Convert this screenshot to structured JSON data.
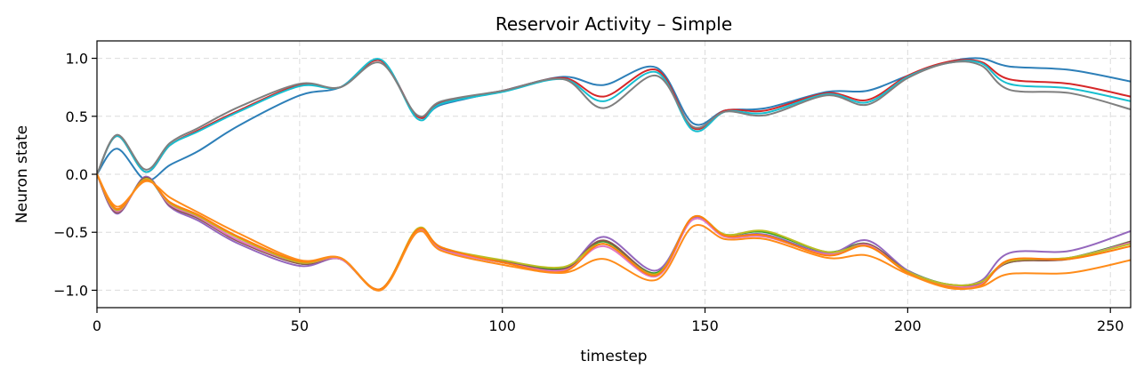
{
  "chart_data": {
    "type": "line",
    "title": "Reservoir Activity – Simple",
    "xlabel": "timestep",
    "ylabel": "Neuron state",
    "xlim": [
      0,
      255
    ],
    "ylim": [
      -1.15,
      1.15
    ],
    "xticks": [
      0,
      50,
      100,
      150,
      200,
      250
    ],
    "yticks": [
      1.0,
      0.5,
      0.0,
      -0.5,
      -1.0
    ],
    "ytick_labels": [
      "1.0",
      "0.5",
      "0.0",
      "−0.5",
      "−1.0"
    ],
    "grid": true,
    "legend": "none",
    "series": [
      {
        "color": "#2d7fb8",
        "x": [
          0,
          5,
          12,
          18,
          25,
          35,
          50,
          60,
          70,
          79,
          85,
          100,
          115,
          125,
          138,
          147,
          155,
          165,
          180,
          190,
          200,
          210,
          218,
          225,
          240,
          255
        ],
        "y": [
          0,
          0.22,
          -0.05,
          0.08,
          0.2,
          0.42,
          0.68,
          0.75,
          0.98,
          0.5,
          0.6,
          0.72,
          0.84,
          0.77,
          0.92,
          0.44,
          0.55,
          0.57,
          0.71,
          0.72,
          0.85,
          0.97,
          1.0,
          0.93,
          0.9,
          0.8
        ]
      },
      {
        "color": "#d62728",
        "x": [
          0,
          5,
          12,
          18,
          25,
          35,
          50,
          60,
          70,
          79,
          85,
          100,
          115,
          125,
          138,
          147,
          155,
          165,
          180,
          190,
          200,
          210,
          218,
          225,
          240,
          255
        ],
        "y": [
          0,
          0.33,
          0.02,
          0.25,
          0.38,
          0.55,
          0.77,
          0.75,
          0.98,
          0.5,
          0.62,
          0.72,
          0.83,
          0.67,
          0.9,
          0.4,
          0.55,
          0.55,
          0.7,
          0.64,
          0.85,
          0.97,
          0.97,
          0.82,
          0.78,
          0.67
        ]
      },
      {
        "color": "#17becf",
        "x": [
          0,
          5,
          12,
          18,
          25,
          35,
          50,
          60,
          70,
          79,
          85,
          100,
          115,
          125,
          138,
          147,
          155,
          165,
          180,
          190,
          200,
          210,
          218,
          225,
          240,
          255
        ],
        "y": [
          0,
          0.33,
          0.02,
          0.25,
          0.37,
          0.54,
          0.76,
          0.75,
          0.99,
          0.48,
          0.61,
          0.71,
          0.82,
          0.63,
          0.88,
          0.38,
          0.54,
          0.53,
          0.69,
          0.62,
          0.84,
          0.96,
          0.96,
          0.78,
          0.74,
          0.63
        ]
      },
      {
        "color": "#7f7f7f",
        "x": [
          0,
          5,
          12,
          18,
          25,
          35,
          50,
          60,
          70,
          79,
          85,
          100,
          115,
          125,
          138,
          147,
          155,
          165,
          180,
          190,
          200,
          210,
          218,
          225,
          240,
          255
        ],
        "y": [
          0,
          0.34,
          0.04,
          0.27,
          0.4,
          0.58,
          0.78,
          0.75,
          0.96,
          0.51,
          0.63,
          0.72,
          0.82,
          0.57,
          0.85,
          0.41,
          0.54,
          0.51,
          0.68,
          0.6,
          0.83,
          0.96,
          0.94,
          0.73,
          0.7,
          0.56
        ]
      },
      {
        "color": "#2ca02c",
        "x": [
          0,
          5,
          12,
          18,
          25,
          35,
          50,
          60,
          70,
          79,
          85,
          100,
          115,
          125,
          138,
          147,
          155,
          165,
          180,
          190,
          200,
          210,
          218,
          225,
          240,
          255
        ],
        "y": [
          0,
          -0.32,
          -0.04,
          -0.27,
          -0.38,
          -0.57,
          -0.77,
          -0.73,
          -0.99,
          -0.48,
          -0.64,
          -0.75,
          -0.81,
          -0.58,
          -0.85,
          -0.38,
          -0.52,
          -0.5,
          -0.67,
          -0.6,
          -0.83,
          -0.95,
          -0.93,
          -0.76,
          -0.72,
          -0.58
        ]
      },
      {
        "color": "#9467bd",
        "x": [
          0,
          5,
          12,
          18,
          25,
          35,
          50,
          60,
          70,
          79,
          85,
          100,
          115,
          125,
          138,
          147,
          155,
          165,
          180,
          190,
          200,
          210,
          218,
          225,
          240,
          255
        ],
        "y": [
          0,
          -0.34,
          -0.02,
          -0.28,
          -0.4,
          -0.6,
          -0.79,
          -0.73,
          -0.99,
          -0.5,
          -0.65,
          -0.76,
          -0.82,
          -0.54,
          -0.83,
          -0.38,
          -0.53,
          -0.52,
          -0.68,
          -0.57,
          -0.83,
          -0.95,
          -0.92,
          -0.68,
          -0.66,
          -0.49
        ]
      },
      {
        "color": "#8c564b",
        "x": [
          0,
          5,
          12,
          18,
          25,
          35,
          50,
          60,
          70,
          79,
          85,
          100,
          115,
          125,
          138,
          147,
          155,
          165,
          180,
          190,
          200,
          210,
          218,
          225,
          240,
          255
        ],
        "y": [
          0,
          -0.33,
          -0.03,
          -0.27,
          -0.38,
          -0.58,
          -0.77,
          -0.73,
          -0.99,
          -0.48,
          -0.64,
          -0.75,
          -0.82,
          -0.57,
          -0.86,
          -0.39,
          -0.53,
          -0.53,
          -0.69,
          -0.6,
          -0.84,
          -0.96,
          -0.94,
          -0.76,
          -0.73,
          -0.58
        ]
      },
      {
        "color": "#e377c2",
        "x": [
          0,
          5,
          12,
          18,
          25,
          35,
          50,
          60,
          70,
          79,
          85,
          100,
          115,
          125,
          138,
          147,
          155,
          165,
          180,
          190,
          200,
          210,
          218,
          225,
          240,
          255
        ],
        "y": [
          0,
          -0.32,
          -0.04,
          -0.26,
          -0.37,
          -0.57,
          -0.76,
          -0.73,
          -0.99,
          -0.49,
          -0.65,
          -0.76,
          -0.83,
          -0.62,
          -0.88,
          -0.39,
          -0.54,
          -0.54,
          -0.69,
          -0.61,
          -0.85,
          -0.96,
          -0.95,
          -0.75,
          -0.72,
          -0.59
        ]
      },
      {
        "color": "#bcbd22",
        "x": [
          0,
          5,
          12,
          18,
          25,
          35,
          50,
          60,
          70,
          79,
          85,
          100,
          115,
          125,
          138,
          147,
          155,
          165,
          180,
          190,
          200,
          210,
          218,
          225,
          240,
          255
        ],
        "y": [
          0,
          -0.31,
          -0.04,
          -0.25,
          -0.36,
          -0.55,
          -0.76,
          -0.72,
          -0.99,
          -0.47,
          -0.63,
          -0.74,
          -0.8,
          -0.6,
          -0.86,
          -0.37,
          -0.52,
          -0.49,
          -0.67,
          -0.62,
          -0.84,
          -0.95,
          -0.93,
          -0.75,
          -0.72,
          -0.6
        ]
      },
      {
        "color": "#ff7f0e",
        "x": [
          0,
          5,
          12,
          18,
          25,
          35,
          50,
          60,
          70,
          79,
          85,
          100,
          115,
          125,
          138,
          147,
          155,
          165,
          180,
          190,
          200,
          210,
          218,
          225,
          240,
          255
        ],
        "y": [
          0,
          -0.3,
          -0.05,
          -0.24,
          -0.35,
          -0.54,
          -0.75,
          -0.72,
          -0.99,
          -0.48,
          -0.63,
          -0.76,
          -0.84,
          -0.6,
          -0.87,
          -0.37,
          -0.53,
          -0.53,
          -0.7,
          -0.62,
          -0.85,
          -0.97,
          -0.96,
          -0.74,
          -0.73,
          -0.62
        ]
      },
      {
        "color": "#ff8c1a",
        "x": [
          0,
          5,
          12,
          18,
          25,
          35,
          50,
          60,
          70,
          79,
          85,
          100,
          115,
          125,
          138,
          147,
          155,
          165,
          180,
          190,
          200,
          210,
          218,
          225,
          240,
          255
        ],
        "y": [
          0,
          -0.28,
          -0.06,
          -0.2,
          -0.33,
          -0.51,
          -0.74,
          -0.72,
          -1.0,
          -0.5,
          -0.66,
          -0.78,
          -0.85,
          -0.73,
          -0.91,
          -0.45,
          -0.56,
          -0.56,
          -0.72,
          -0.7,
          -0.86,
          -0.98,
          -0.97,
          -0.86,
          -0.85,
          -0.74
        ]
      }
    ]
  }
}
